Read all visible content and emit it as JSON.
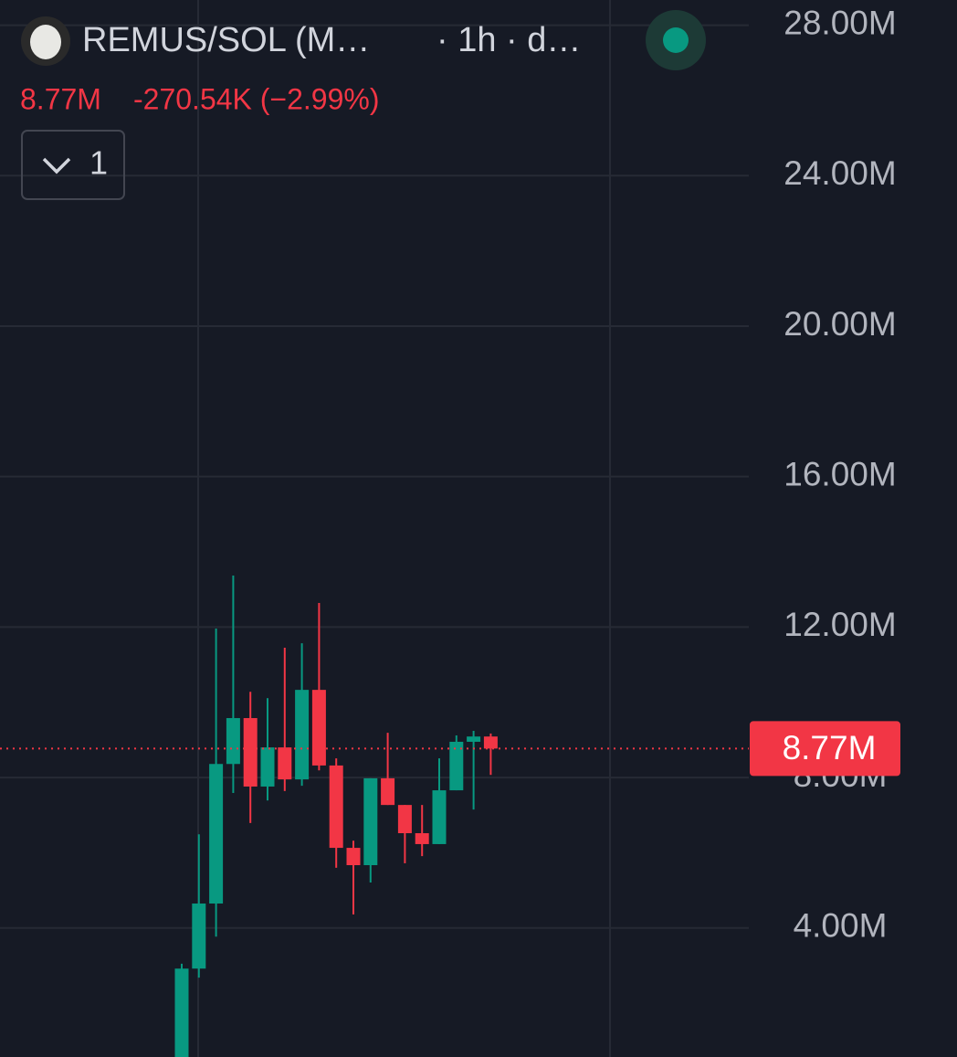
{
  "chart_data": {
    "type": "candlestick",
    "symbol": "REMUS/SOL (M…",
    "interval": "· 1h · d…",
    "change": "-270.54K (−2.99%)",
    "indicator_count": 1,
    "up_color": "#089981",
    "down_color": "#f23645",
    "open": [
      0.5,
      2.92,
      4.65,
      8.36,
      9.58,
      7.76,
      8.8,
      7.95,
      10.33,
      8.32,
      6.13,
      5.67,
      7.98,
      7.27,
      6.52,
      6.23,
      7.66,
      8.95,
      9.09
    ],
    "high": [
      3.05,
      6.49,
      11.96,
      13.37,
      10.28,
      10.11,
      11.45,
      11.57,
      12.64,
      8.51,
      6.32,
      7.98,
      9.19,
      7.27,
      7.27,
      8.51,
      9.12,
      9.24,
      9.17
    ],
    "low": [
      0.5,
      2.68,
      3.77,
      7.59,
      6.79,
      7.39,
      7.64,
      7.78,
      8.19,
      5.6,
      4.36,
      5.21,
      7.27,
      5.72,
      5.91,
      6.23,
      7.66,
      7.15,
      8.07
    ],
    "close": [
      2.92,
      4.65,
      8.36,
      9.58,
      7.76,
      8.8,
      7.95,
      10.33,
      8.32,
      6.13,
      5.67,
      7.98,
      7.27,
      6.52,
      6.23,
      7.66,
      8.95,
      9.09,
      8.77
    ],
    "last_price": {
      "value": 8.77,
      "label": "8.77M"
    },
    "ylim": [
      0.57,
      28.67
    ],
    "yticks": [
      {
        "value": 4,
        "label": "4.00M"
      },
      {
        "value": 8,
        "label": "8.00M"
      },
      {
        "value": 12,
        "label": "12.00M"
      },
      {
        "value": 16,
        "label": "16.00M"
      },
      {
        "value": 20,
        "label": "20.00M"
      },
      {
        "value": 24,
        "label": "24.00M"
      },
      {
        "value": 28,
        "label": "28.00M"
      }
    ],
    "grid": true
  }
}
